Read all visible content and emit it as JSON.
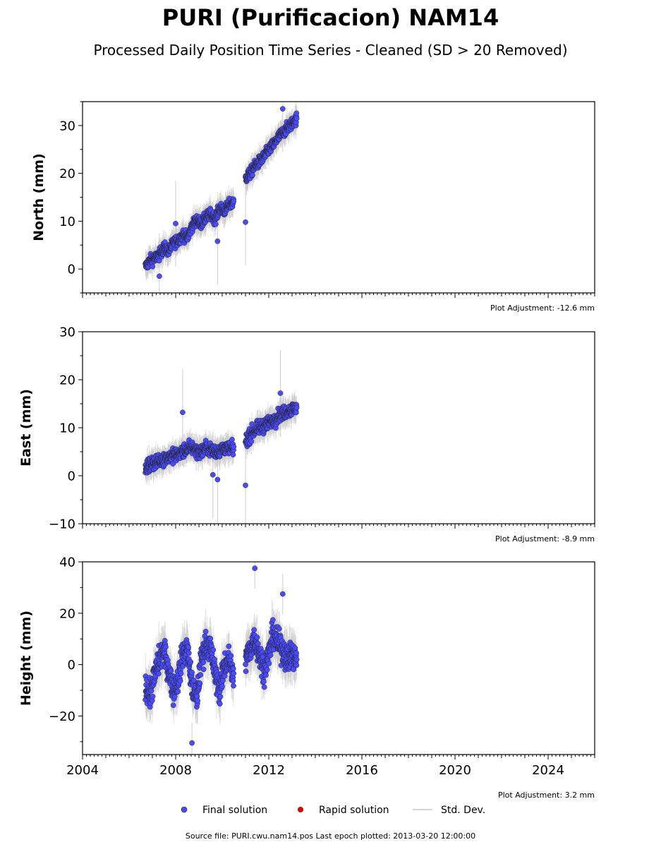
{
  "title": "PURI (Purificacion) NAM14",
  "subtitle": "Processed Daily Position Time Series - Cleaned (SD > 20 Removed)",
  "footer": "Source file: PURI.cwu.nam14.pos  Last epoch plotted: 2013-03-20 12:00:00",
  "legend": {
    "final_label": "Final solution",
    "rapid_label": "Rapid solution",
    "std_label": "Std. Dev.",
    "final_color": "#4a4aff",
    "rapid_color": "#dd0000",
    "std_color": "#c8c8c8"
  },
  "chart_data": [
    {
      "type": "scatter",
      "component": "north",
      "ylabel": "North (mm)",
      "adjustment_text": "Plot Adjustment: -12.6 mm",
      "xlim": [
        2004,
        2026
      ],
      "ylim": [
        -5,
        35
      ],
      "yticks": [
        0,
        10,
        20,
        30
      ],
      "ytick_labels": [
        "0",
        "10",
        "20",
        "30"
      ],
      "xticks": [
        2004,
        2008,
        2012,
        2016,
        2020,
        2024
      ],
      "xtick_labels": [],
      "x": [
        2006.7,
        2006.9,
        2007.1,
        2007.3,
        2007.5,
        2007.7,
        2007.9,
        2008.1,
        2008.3,
        2008.5,
        2008.7,
        2008.9,
        2009.1,
        2009.3,
        2009.5,
        2009.7,
        2009.9,
        2010.1,
        2010.3,
        2010.5,
        2011.0,
        2011.2,
        2011.4,
        2011.6,
        2011.8,
        2012.0,
        2012.2,
        2012.4,
        2012.6,
        2012.8,
        2013.0,
        2013.2
      ],
      "y": [
        0.5,
        1.8,
        2.2,
        3.0,
        4.5,
        3.8,
        5.5,
        6.0,
        7.2,
        6.5,
        9.0,
        10.2,
        9.5,
        10.8,
        11.5,
        10.5,
        12.8,
        12.2,
        13.5,
        14.0,
        19.0,
        20.0,
        21.5,
        22.5,
        23.5,
        25.0,
        26.0,
        27.5,
        28.5,
        29.5,
        30.5,
        31.5
      ],
      "outliers": {
        "x": [
          2011.0,
          2007.3,
          2008.0,
          2009.8,
          2012.6
        ],
        "y": [
          9.8,
          -1.5,
          9.5,
          5.8,
          33.5
        ]
      }
    },
    {
      "type": "scatter",
      "component": "east",
      "ylabel": "East (mm)",
      "adjustment_text": "Plot Adjustment: -8.9 mm",
      "xlim": [
        2004,
        2026
      ],
      "ylim": [
        -10,
        30
      ],
      "yticks": [
        -10,
        0,
        10,
        20,
        30
      ],
      "ytick_labels": [
        "−10",
        "0",
        "10",
        "20",
        "30"
      ],
      "xticks": [
        2004,
        2008,
        2012,
        2016,
        2020,
        2024
      ],
      "xtick_labels": [],
      "x": [
        2006.7,
        2006.9,
        2007.1,
        2007.3,
        2007.5,
        2007.7,
        2007.9,
        2008.1,
        2008.3,
        2008.5,
        2008.7,
        2008.9,
        2009.1,
        2009.3,
        2009.5,
        2009.7,
        2009.9,
        2010.1,
        2010.3,
        2010.5,
        2011.0,
        2011.2,
        2011.4,
        2011.6,
        2011.8,
        2012.0,
        2012.2,
        2012.4,
        2012.6,
        2012.8,
        2013.0,
        2013.2
      ],
      "y": [
        1.5,
        2.2,
        2.8,
        3.0,
        3.5,
        4.0,
        4.2,
        4.5,
        5.0,
        5.5,
        6.0,
        5.2,
        5.0,
        5.8,
        5.5,
        5.0,
        5.3,
        5.8,
        5.5,
        5.6,
        7.0,
        8.5,
        9.5,
        10.0,
        10.5,
        11.0,
        11.5,
        12.5,
        13.0,
        13.5,
        13.8,
        14.2
      ],
      "outliers": {
        "x": [
          2011.0,
          2008.3,
          2009.6,
          2009.8,
          2012.5
        ],
        "y": [
          -2.0,
          13.2,
          0.2,
          -0.8,
          17.2
        ]
      }
    },
    {
      "type": "scatter",
      "component": "height",
      "ylabel": "Height (mm)",
      "adjustment_text": "Plot Adjustment: 3.2 mm",
      "xlim": [
        2004,
        2026
      ],
      "ylim": [
        -35,
        40
      ],
      "yticks": [
        -20,
        0,
        20,
        40
      ],
      "ytick_labels": [
        "−20",
        "0",
        "20",
        "40"
      ],
      "xticks": [
        2004,
        2008,
        2012,
        2016,
        2020,
        2024
      ],
      "xtick_labels": [
        "2004",
        "2008",
        "2012",
        "2016",
        "2020",
        "2024"
      ],
      "x": [
        2006.7,
        2006.9,
        2007.1,
        2007.3,
        2007.5,
        2007.7,
        2007.9,
        2008.1,
        2008.3,
        2008.5,
        2008.7,
        2008.9,
        2009.1,
        2009.3,
        2009.5,
        2009.7,
        2009.9,
        2010.1,
        2010.3,
        2010.5,
        2011.0,
        2011.2,
        2011.4,
        2011.6,
        2011.8,
        2012.0,
        2012.2,
        2012.4,
        2012.6,
        2012.8,
        2013.0,
        2013.2
      ],
      "y": [
        -8,
        -12,
        -4,
        2,
        5,
        -2,
        -10,
        -6,
        4,
        6,
        -8,
        -14,
        2,
        8,
        6,
        -4,
        -10,
        0,
        2,
        -6,
        2,
        6,
        10,
        4,
        -2,
        4,
        12,
        8,
        6,
        2,
        4,
        2
      ],
      "outliers": {
        "x": [
          2011.4,
          2008.7,
          2012.6
        ],
        "y": [
          37.5,
          -30.5,
          27.5
        ]
      }
    }
  ]
}
